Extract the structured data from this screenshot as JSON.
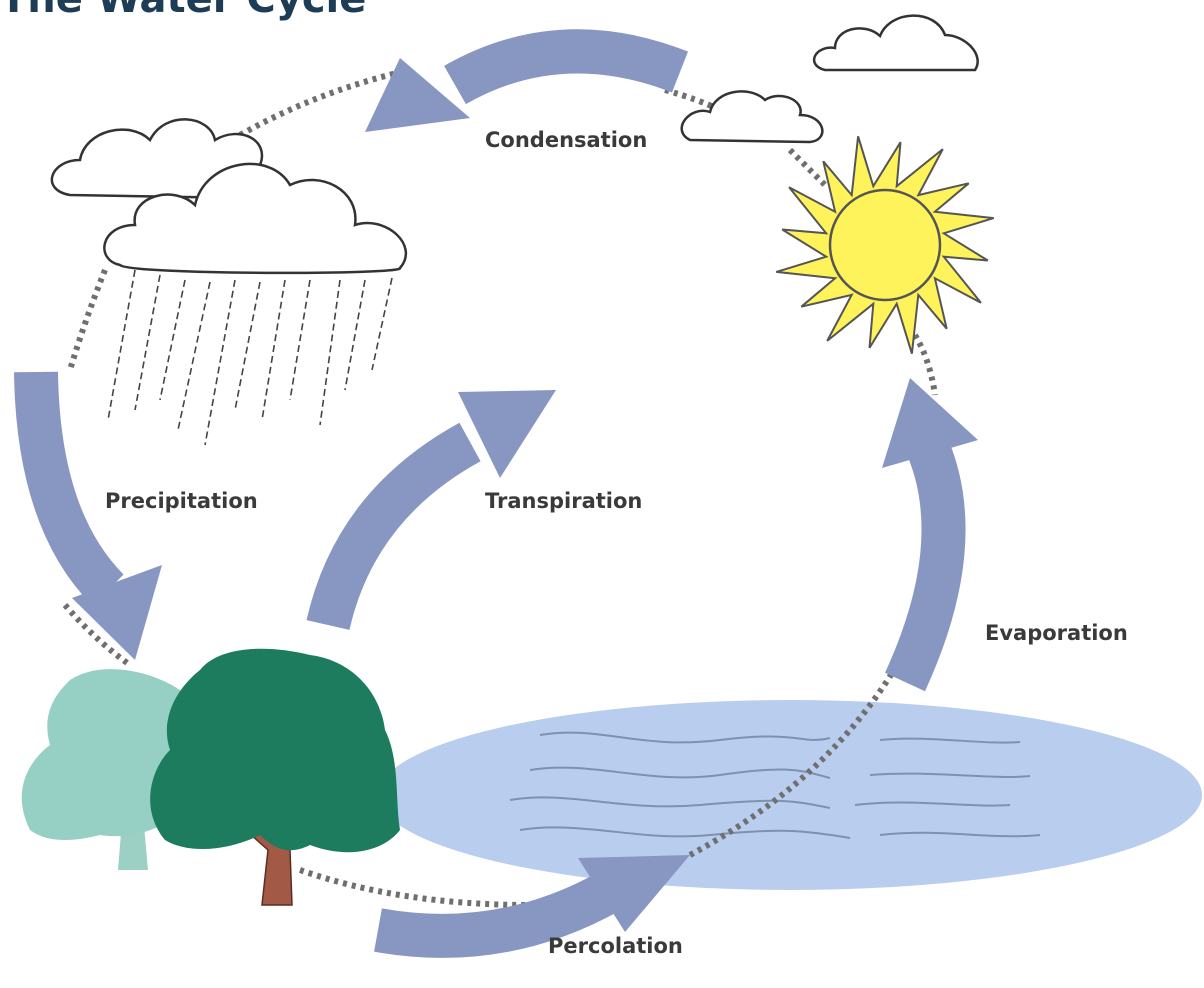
{
  "title": "The Water Cycle",
  "labels": [
    "Condensation",
    "Precipitation",
    "Transpiration",
    "Evaporation",
    "Percolation"
  ]
}
